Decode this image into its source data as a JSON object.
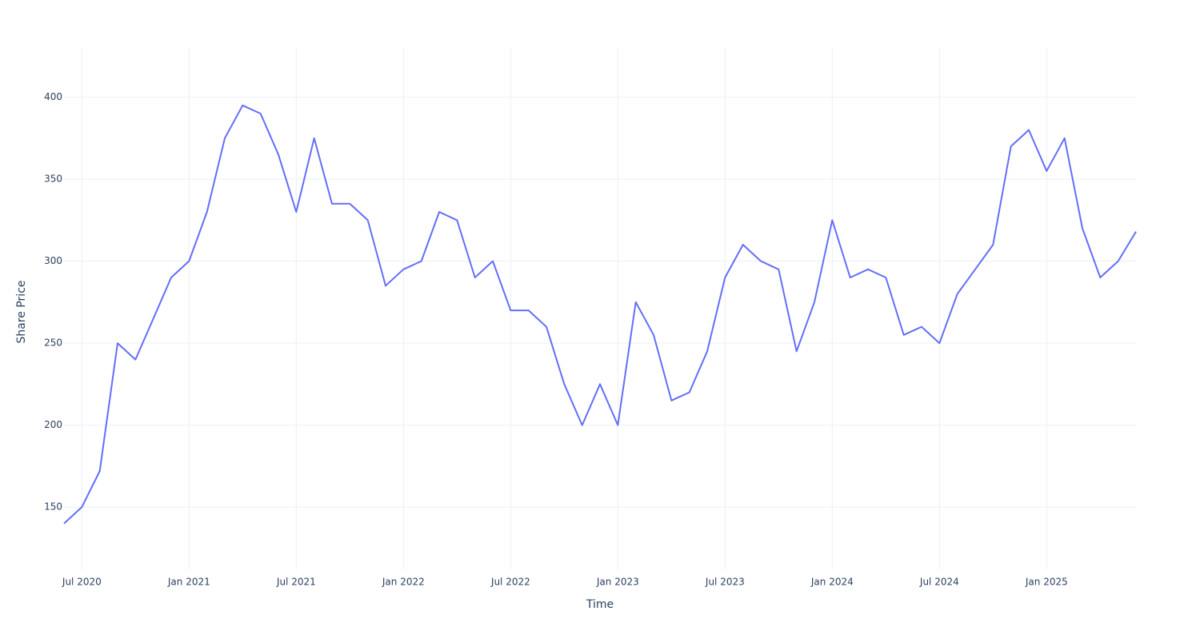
{
  "chart_data": {
    "type": "line",
    "x_label": "Time",
    "y_label": "Share Price",
    "x": [
      "2020-06",
      "2020-07",
      "2020-08",
      "2020-09",
      "2020-10",
      "2020-11",
      "2020-12",
      "2021-01",
      "2021-02",
      "2021-03",
      "2021-04",
      "2021-05",
      "2021-06",
      "2021-07",
      "2021-08",
      "2021-09",
      "2021-10",
      "2021-11",
      "2021-12",
      "2022-01",
      "2022-02",
      "2022-03",
      "2022-04",
      "2022-05",
      "2022-06",
      "2022-07",
      "2022-08",
      "2022-09",
      "2022-10",
      "2022-11",
      "2022-12",
      "2023-01",
      "2023-02",
      "2023-03",
      "2023-04",
      "2023-05",
      "2023-06",
      "2023-07",
      "2023-08",
      "2023-09",
      "2023-10",
      "2023-11",
      "2023-12",
      "2024-01",
      "2024-02",
      "2024-03",
      "2024-04",
      "2024-05",
      "2024-06",
      "2024-07",
      "2024-08",
      "2024-09",
      "2024-10",
      "2024-11",
      "2024-12",
      "2025-01",
      "2025-02",
      "2025-03",
      "2025-04",
      "2025-05",
      "2025-06"
    ],
    "series": [
      {
        "name": "Share Price",
        "color": "#636efa",
        "values": [
          140,
          150,
          172,
          250,
          240,
          265,
          290,
          300,
          330,
          375,
          395,
          390,
          365,
          330,
          375,
          335,
          335,
          325,
          285,
          295,
          300,
          330,
          325,
          290,
          300,
          270,
          270,
          260,
          225,
          200,
          225,
          200,
          275,
          255,
          215,
          220,
          245,
          290,
          310,
          300,
          295,
          245,
          275,
          325,
          290,
          295,
          290,
          255,
          260,
          250,
          280,
          295,
          310,
          370,
          380,
          355,
          375,
          320,
          290,
          300,
          318
        ]
      }
    ],
    "xlim": [
      "2020-06",
      "2025-06"
    ],
    "xticks": [
      {
        "value": "2020-07",
        "label": "Jul 2020"
      },
      {
        "value": "2021-01",
        "label": "Jan 2021"
      },
      {
        "value": "2021-07",
        "label": "Jul 2021"
      },
      {
        "value": "2022-01",
        "label": "Jan 2022"
      },
      {
        "value": "2022-07",
        "label": "Jul 2022"
      },
      {
        "value": "2023-01",
        "label": "Jan 2023"
      },
      {
        "value": "2023-07",
        "label": "Jul 2023"
      },
      {
        "value": "2024-01",
        "label": "Jan 2024"
      },
      {
        "value": "2024-07",
        "label": "Jul 2024"
      },
      {
        "value": "2025-01",
        "label": "Jan 2025"
      }
    ],
    "ylim": [
      112,
      430
    ],
    "yticks": [
      150,
      200,
      250,
      300,
      350,
      400
    ],
    "grid": true
  }
}
